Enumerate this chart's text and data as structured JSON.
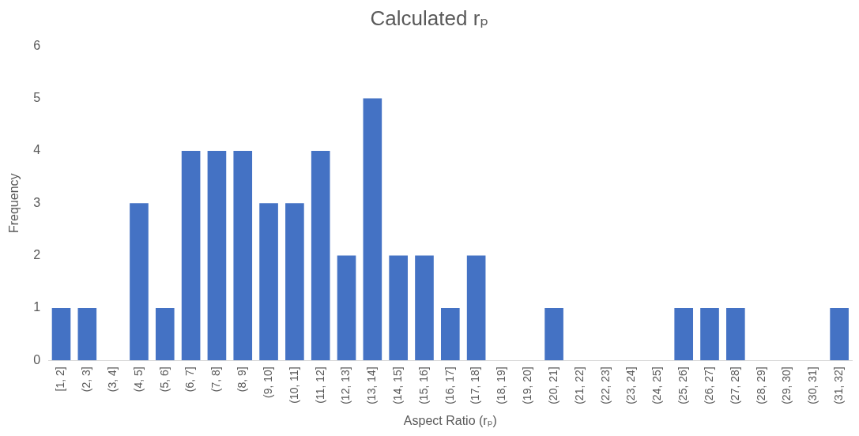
{
  "chart_data": {
    "type": "bar",
    "title": "Calculated rₚ",
    "xlabel": "Aspect Ratio (rₚ)",
    "ylabel": "Frequency",
    "categories": [
      "[1, 2]",
      "(2, 3]",
      "(3, 4]",
      "(4, 5]",
      "(5, 6]",
      "(6, 7]",
      "(7, 8]",
      "(8, 9]",
      "(9, 10]",
      "(10, 11]",
      "(11, 12]",
      "(12, 13]",
      "(13, 14]",
      "(14, 15]",
      "(15, 16]",
      "(16, 17]",
      "(17, 18]",
      "(18, 19]",
      "(19, 20]",
      "(20, 21]",
      "(21, 22]",
      "(22, 23]",
      "(23, 24]",
      "(24, 25]",
      "(25, 26]",
      "(26, 27]",
      "(27, 28]",
      "(28, 29]",
      "(29, 30]",
      "(30, 31]",
      "(31, 32]"
    ],
    "values": [
      1,
      1,
      0,
      3,
      1,
      4,
      4,
      4,
      3,
      3,
      4,
      2,
      5,
      2,
      2,
      1,
      2,
      0,
      0,
      1,
      0,
      0,
      0,
      0,
      1,
      1,
      1,
      0,
      0,
      0,
      1
    ],
    "color": "#4472c4",
    "ylim": [
      0,
      6
    ],
    "yticks": [
      0,
      1,
      2,
      3,
      4,
      5,
      6
    ],
    "grid": false
  }
}
